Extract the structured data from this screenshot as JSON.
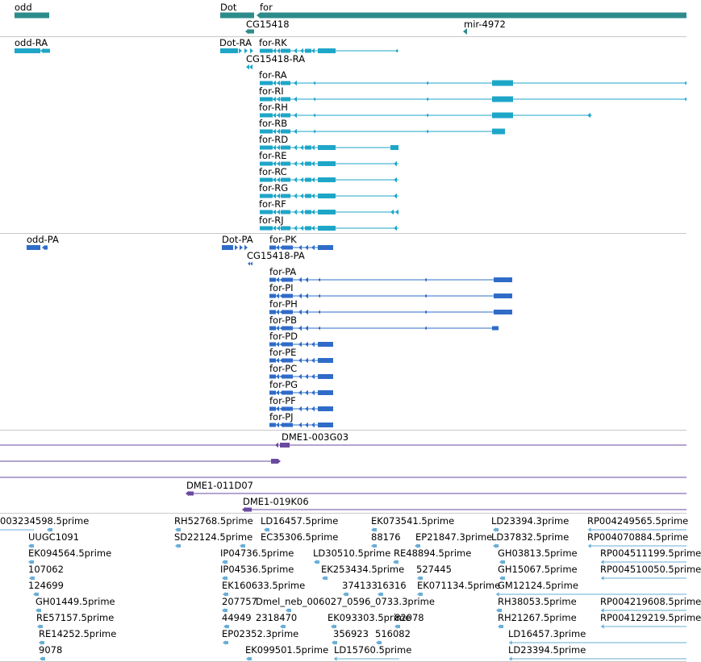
{
  "colors": {
    "gene": "#2e8b8b",
    "transcript": "#1ea6c8",
    "protein": "#2f6cc8",
    "clone": "#6a4aa0",
    "est": "#6aaed6",
    "divider": "#c8c8c8"
  },
  "genes": {
    "labels": [
      "odd",
      "Dot",
      "for",
      "CG15418",
      "mir-4972"
    ]
  },
  "transcripts": {
    "labels": [
      "odd-RA",
      "Dot-RA",
      "for-RK",
      "CG15418-RA",
      "for-RA",
      "for-RI",
      "for-RH",
      "for-RB",
      "for-RD",
      "for-RE",
      "for-RC",
      "for-RG",
      "for-RF",
      "for-RJ"
    ]
  },
  "proteins": {
    "labels": [
      "odd-PA",
      "Dot-PA",
      "for-PK",
      "CG15418-PA",
      "for-PA",
      "for-PI",
      "for-PH",
      "for-PB",
      "for-PD",
      "for-PE",
      "for-PC",
      "for-PG",
      "for-PF",
      "for-PJ"
    ]
  },
  "clones": {
    "labels": [
      "DME1-003G03",
      "DME1-011D07",
      "DME1-019K06"
    ]
  },
  "ests": {
    "labels": [
      "003234598.5prime",
      "RH52768.5prime",
      "LD16457.5prime",
      "EK073541.5prime",
      "LD23394.3prime",
      "RP004249565.5prime",
      "UUGC1091",
      "SD22124.5prime",
      "EC35306.5prime",
      "88176",
      "EP21847.3prime",
      "LD37832.5prime",
      "RP004070884.5prime",
      "EK094564.5prime",
      "IP04736.5prime",
      "LD30510.5prime",
      "RE48894.5prime",
      "GH03813.5prime",
      "RP004511199.5prime",
      "107062",
      "IP04536.5prime",
      "EK253434.5prime",
      "527445",
      "GH15067.5prime",
      "RP004510050.5prime",
      "124699",
      "EK160633.5prime",
      "374133",
      "16316",
      "EK071134.5prime",
      "GM12124.5prime",
      "GH01449.5prime",
      "207757",
      "Dmel_neb_006027_0596_0733.3prime",
      "RH38053.5prime",
      "RP004219608.5prime",
      "RE57157.5prime",
      "44949",
      "2318470",
      "EK093303.5prime",
      "82078",
      "RH21267.5prime",
      "RP004129219.5prime",
      "RE14252.5prime",
      "EP02352.3prime",
      "356923",
      "516082",
      "LD16457.3prime",
      "9078",
      "EK099501.5prime",
      "LD15760.5prime",
      "LD23394.5prime"
    ]
  }
}
